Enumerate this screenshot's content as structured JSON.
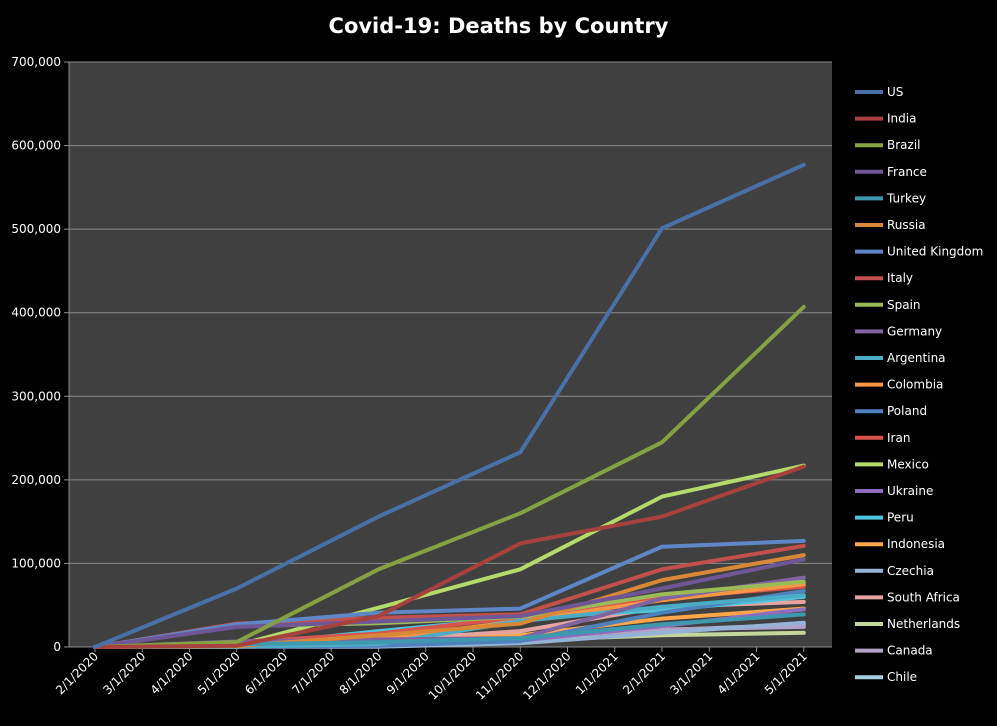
{
  "chart_data": {
    "type": "line",
    "title": "Covid-19:  Deaths by Country",
    "xlabel": "",
    "ylabel": "",
    "x": [
      "2/1/2020",
      "3/1/2020",
      "4/1/2020",
      "5/1/2020",
      "6/1/2020",
      "7/1/2020",
      "8/1/2020",
      "9/1/2020",
      "10/1/2020",
      "11/1/2020",
      "12/1/2020",
      "1/1/2021",
      "2/1/2021",
      "3/1/2021",
      "4/1/2021",
      "5/1/2021"
    ],
    "ylim": [
      0,
      700000
    ],
    "yticks": [
      0,
      100000,
      200000,
      300000,
      400000,
      500000,
      600000,
      700000
    ],
    "ytick_labels": [
      "0",
      "100,000",
      "200,000",
      "300,000",
      "400,000",
      "500,000",
      "600,000",
      "700,000"
    ],
    "grid": true,
    "legend_position": "right",
    "colors": {
      "background": "#000000",
      "plot_area": "#404040",
      "grid": "#8c8c8c",
      "text": "#ffffff"
    },
    "series": [
      {
        "name": "US",
        "color": "#4a70a8",
        "points": [
          [
            "2/1/2020",
            0
          ],
          [
            "5/1/2020",
            70000
          ],
          [
            "8/1/2020",
            156000
          ],
          [
            "11/1/2020",
            233000
          ],
          [
            "2/1/2021",
            501000
          ],
          [
            "5/1/2021",
            577000
          ]
        ]
      },
      {
        "name": "India",
        "color": "#a6413d",
        "points": [
          [
            "2/1/2020",
            0
          ],
          [
            "5/1/2020",
            1500
          ],
          [
            "8/1/2020",
            37000
          ],
          [
            "11/1/2020",
            124000
          ],
          [
            "2/1/2021",
            156000
          ],
          [
            "5/1/2021",
            216000
          ]
        ]
      },
      {
        "name": "Brazil",
        "color": "#86a143",
        "points": [
          [
            "2/1/2020",
            0
          ],
          [
            "5/1/2020",
            6000
          ],
          [
            "8/1/2020",
            93000
          ],
          [
            "11/1/2020",
            160000
          ],
          [
            "2/1/2021",
            245000
          ],
          [
            "5/1/2021",
            407000
          ]
        ]
      },
      {
        "name": "France",
        "color": "#6f5696",
        "points": [
          [
            "2/1/2020",
            0
          ],
          [
            "5/1/2020",
            24000
          ],
          [
            "8/1/2020",
            30500
          ],
          [
            "11/1/2020",
            37000
          ],
          [
            "2/1/2021",
            70000
          ],
          [
            "5/1/2021",
            105000
          ]
        ]
      },
      {
        "name": "Turkey",
        "color": "#3e98ae",
        "points": [
          [
            "2/1/2020",
            0
          ],
          [
            "5/1/2020",
            3200
          ],
          [
            "8/1/2020",
            5800
          ],
          [
            "11/1/2020",
            10500
          ],
          [
            "2/1/2021",
            27000
          ],
          [
            "5/1/2021",
            39000
          ]
        ]
      },
      {
        "name": "Russia",
        "color": "#d98838",
        "points": [
          [
            "2/1/2020",
            0
          ],
          [
            "5/1/2020",
            1100
          ],
          [
            "8/1/2020",
            14000
          ],
          [
            "11/1/2020",
            28000
          ],
          [
            "2/1/2021",
            80000
          ],
          [
            "5/1/2021",
            110000
          ]
        ]
      },
      {
        "name": "United Kingdom",
        "color": "#5f86c6",
        "points": [
          [
            "2/1/2020",
            0
          ],
          [
            "5/1/2020",
            27000
          ],
          [
            "8/1/2020",
            41000
          ],
          [
            "11/1/2020",
            46000
          ],
          [
            "2/1/2021",
            120000
          ],
          [
            "5/1/2021",
            127000
          ]
        ]
      },
      {
        "name": "Italy",
        "color": "#c2504d",
        "points": [
          [
            "2/1/2020",
            0
          ],
          [
            "5/1/2020",
            28000
          ],
          [
            "8/1/2020",
            35000
          ],
          [
            "11/1/2020",
            39000
          ],
          [
            "2/1/2021",
            93000
          ],
          [
            "5/1/2021",
            121000
          ]
        ]
      },
      {
        "name": "Spain",
        "color": "#9bbb59",
        "points": [
          [
            "2/1/2020",
            0
          ],
          [
            "5/1/2020",
            25000
          ],
          [
            "8/1/2020",
            28500
          ],
          [
            "11/1/2020",
            36000
          ],
          [
            "2/1/2021",
            63000
          ],
          [
            "5/1/2021",
            78000
          ]
        ]
      },
      {
        "name": "Germany",
        "color": "#8064a2",
        "points": [
          [
            "2/1/2020",
            0
          ],
          [
            "5/1/2020",
            6600
          ],
          [
            "8/1/2020",
            9100
          ],
          [
            "11/1/2020",
            10500
          ],
          [
            "2/1/2021",
            58000
          ],
          [
            "5/1/2021",
            83000
          ]
        ]
      },
      {
        "name": "Argentina",
        "color": "#4bacc6",
        "points": [
          [
            "2/1/2020",
            0
          ],
          [
            "5/1/2020",
            200
          ],
          [
            "8/1/2020",
            3500
          ],
          [
            "11/1/2020",
            31000
          ],
          [
            "2/1/2021",
            48000
          ],
          [
            "5/1/2021",
            62000
          ]
        ]
      },
      {
        "name": "Colombia",
        "color": "#f79646",
        "points": [
          [
            "2/1/2020",
            0
          ],
          [
            "5/1/2020",
            200
          ],
          [
            "8/1/2020",
            10000
          ],
          [
            "11/1/2020",
            31000
          ],
          [
            "2/1/2021",
            56000
          ],
          [
            "5/1/2021",
            75000
          ]
        ]
      },
      {
        "name": "Poland",
        "color": "#4f81bd",
        "points": [
          [
            "2/1/2020",
            0
          ],
          [
            "5/1/2020",
            600
          ],
          [
            "8/1/2020",
            1700
          ],
          [
            "11/1/2020",
            7000
          ],
          [
            "2/1/2021",
            41000
          ],
          [
            "5/1/2021",
            67000
          ]
        ]
      },
      {
        "name": "Iran",
        "color": "#d9534f",
        "points": [
          [
            "2/1/2020",
            0
          ],
          [
            "5/1/2020",
            6000
          ],
          [
            "8/1/2020",
            16000
          ],
          [
            "11/1/2020",
            36000
          ],
          [
            "2/1/2021",
            58000
          ],
          [
            "5/1/2021",
            72000
          ]
        ]
      },
      {
        "name": "Mexico",
        "color": "#b6d96b",
        "points": [
          [
            "2/1/2020",
            0
          ],
          [
            "5/1/2020",
            2000
          ],
          [
            "8/1/2020",
            47000
          ],
          [
            "11/1/2020",
            93000
          ],
          [
            "2/1/2021",
            180000
          ],
          [
            "5/1/2021",
            217000
          ]
        ]
      },
      {
        "name": "Ukraine",
        "color": "#8e6cc0",
        "points": [
          [
            "2/1/2020",
            0
          ],
          [
            "5/1/2020",
            300
          ],
          [
            "8/1/2020",
            1600
          ],
          [
            "11/1/2020",
            7800
          ],
          [
            "2/1/2021",
            25000
          ],
          [
            "5/1/2021",
            45000
          ]
        ]
      },
      {
        "name": "Peru",
        "color": "#4fc3dc",
        "points": [
          [
            "2/1/2020",
            0
          ],
          [
            "5/1/2020",
            1200
          ],
          [
            "8/1/2020",
            19000
          ],
          [
            "11/1/2020",
            35000
          ],
          [
            "2/1/2021",
            44000
          ],
          [
            "5/1/2021",
            60000
          ]
        ]
      },
      {
        "name": "Indonesia",
        "color": "#ffa64d",
        "points": [
          [
            "2/1/2020",
            0
          ],
          [
            "5/1/2020",
            800
          ],
          [
            "8/1/2020",
            5000
          ],
          [
            "11/1/2020",
            14000
          ],
          [
            "2/1/2021",
            34000
          ],
          [
            "5/1/2021",
            46000
          ]
        ]
      },
      {
        "name": "Czechia",
        "color": "#95b3d7",
        "points": [
          [
            "2/1/2020",
            0
          ],
          [
            "5/1/2020",
            250
          ],
          [
            "8/1/2020",
            400
          ],
          [
            "11/1/2020",
            4500
          ],
          [
            "2/1/2021",
            17000
          ],
          [
            "5/1/2021",
            29000
          ]
        ]
      },
      {
        "name": "South Africa",
        "color": "#e6a5a3",
        "points": [
          [
            "2/1/2020",
            0
          ],
          [
            "5/1/2020",
            100
          ],
          [
            "8/1/2020",
            8000
          ],
          [
            "11/1/2020",
            19000
          ],
          [
            "2/1/2021",
            48000
          ],
          [
            "5/1/2021",
            54000
          ]
        ]
      },
      {
        "name": "Netherlands",
        "color": "#c3d69b",
        "points": [
          [
            "2/1/2020",
            0
          ],
          [
            "5/1/2020",
            5000
          ],
          [
            "8/1/2020",
            6100
          ],
          [
            "11/1/2020",
            8000
          ],
          [
            "2/1/2021",
            14000
          ],
          [
            "5/1/2021",
            17000
          ]
        ]
      },
      {
        "name": "Canada",
        "color": "#b3a2c7",
        "points": [
          [
            "2/1/2020",
            0
          ],
          [
            "5/1/2020",
            3500
          ],
          [
            "8/1/2020",
            9000
          ],
          [
            "11/1/2020",
            10500
          ],
          [
            "2/1/2021",
            21000
          ],
          [
            "5/1/2021",
            24000
          ]
        ]
      },
      {
        "name": "Chile",
        "color": "#a5cde0",
        "points": [
          [
            "2/1/2020",
            0
          ],
          [
            "5/1/2020",
            250
          ],
          [
            "8/1/2020",
            10000
          ],
          [
            "11/1/2020",
            14500
          ],
          [
            "2/1/2021",
            20000
          ],
          [
            "5/1/2021",
            27000
          ]
        ]
      }
    ]
  }
}
